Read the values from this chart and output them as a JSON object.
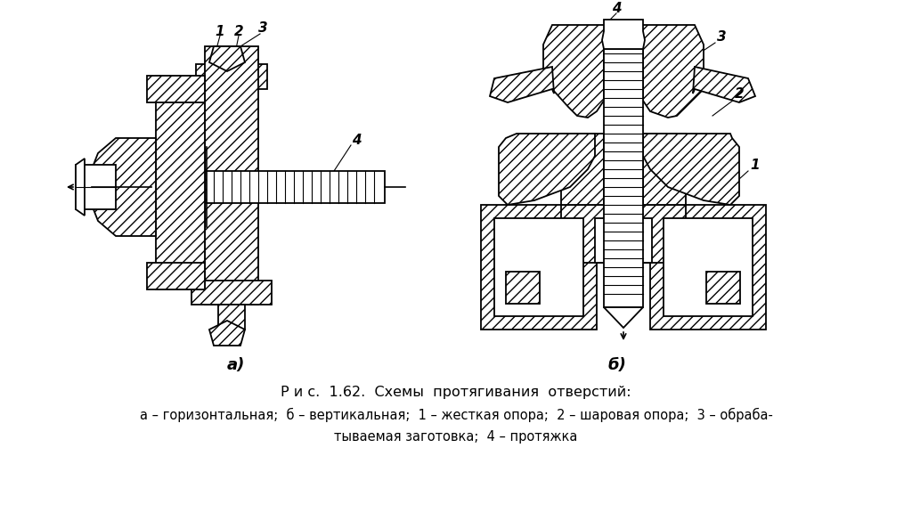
{
  "background_color": "#ffffff",
  "title": "Р и с.  1.62.  Схемы  протягивания  отверстий:",
  "caption_line1": "а – горизонтальная;  б – вертикальная;  1 – жесткая опора;  2 – шаровая опора;  3 – обраба-",
  "caption_line2": "тываемая заготовка;  4 – протяжка",
  "label_a": "а)",
  "label_b": "б)",
  "fig_width": 10.24,
  "fig_height": 5.76
}
